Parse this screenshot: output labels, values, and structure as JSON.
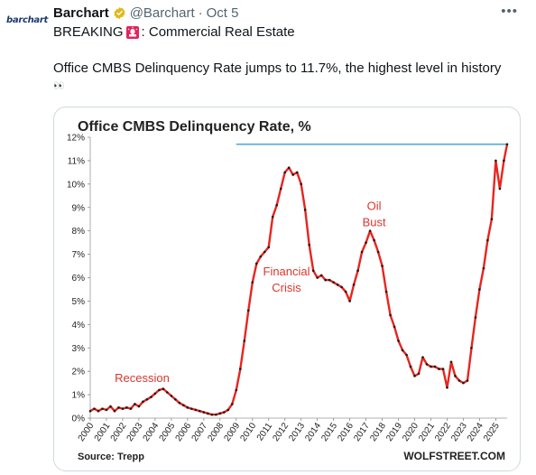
{
  "tweet": {
    "avatar_text": "barchart",
    "author_name": "Barchart",
    "handle": "@Barchart",
    "separator": "·",
    "timestamp": "Oct 5",
    "more_label": "•••",
    "line1_prefix": "BREAKING",
    "line1_suffix": ": Commercial Real Estate",
    "line2": "Office CMBS Delinquency Rate jumps to 11.7%, the highest level in history",
    "eyes": "👀"
  },
  "chart_data": {
    "type": "line",
    "title": "Office CMBS Delinquency Rate, %",
    "source": "Source: Trepp",
    "watermark": "WOLFSTREET.COM",
    "ylim": [
      0,
      12
    ],
    "yticks": [
      "0%",
      "1%",
      "2%",
      "3%",
      "4%",
      "5%",
      "6%",
      "7%",
      "8%",
      "9%",
      "10%",
      "11%",
      "12%"
    ],
    "xlim": [
      2000,
      2025.7
    ],
    "xticks": [
      "2000",
      "2001",
      "2002",
      "2003",
      "2004",
      "2005",
      "2006",
      "2007",
      "2008",
      "2009",
      "2010",
      "2011",
      "2012",
      "2013",
      "2014",
      "2015",
      "2016",
      "2017",
      "2018",
      "2019",
      "2020",
      "2021",
      "2022",
      "2023",
      "2024",
      "2025"
    ],
    "line_color": "#e8251e",
    "marker_color": "#1a1a1a",
    "reference_line": {
      "value": 11.7,
      "start_x": 2009.0,
      "color": "#5ab0d9"
    },
    "annotations": [
      {
        "text": "Recession",
        "x": 2003.2,
        "y": 1.55,
        "color": "#d9372e"
      },
      {
        "text": "Financial",
        "x": 2012.1,
        "y": 6.1,
        "color": "#d9372e"
      },
      {
        "text": "Crisis",
        "x": 2012.1,
        "y": 5.4,
        "color": "#d9372e"
      },
      {
        "text": "Oil",
        "x": 2017.5,
        "y": 8.9,
        "color": "#d9372e"
      },
      {
        "text": "Bust",
        "x": 2017.5,
        "y": 8.2,
        "color": "#d9372e"
      }
    ],
    "series": [
      {
        "x": [
          2000.0,
          2000.25,
          2000.5,
          2000.75,
          2001.0,
          2001.25,
          2001.5,
          2001.75,
          2002.0,
          2002.25,
          2002.5,
          2002.75,
          2003.0,
          2003.25,
          2003.5,
          2003.75,
          2004.0,
          2004.25,
          2004.5,
          2004.75,
          2005.0,
          2005.25,
          2005.5,
          2005.75,
          2006.0,
          2006.25,
          2006.5,
          2006.75,
          2007.0,
          2007.25,
          2007.5,
          2007.75,
          2008.0,
          2008.25,
          2008.5,
          2008.75,
          2009.0,
          2009.25,
          2009.5,
          2009.75,
          2010.0,
          2010.25,
          2010.5,
          2010.75,
          2011.0,
          2011.25,
          2011.5,
          2011.75,
          2012.0,
          2012.25,
          2012.5,
          2012.75,
          2013.0,
          2013.25,
          2013.5,
          2013.75,
          2014.0,
          2014.25,
          2014.5,
          2014.75,
          2015.0,
          2015.25,
          2015.5,
          2015.75,
          2016.0,
          2016.25,
          2016.5,
          2016.75,
          2017.0,
          2017.25,
          2017.5,
          2017.75,
          2018.0,
          2018.25,
          2018.5,
          2018.75,
          2019.0,
          2019.25,
          2019.5,
          2019.75,
          2020.0,
          2020.25,
          2020.5,
          2020.75,
          2021.0,
          2021.25,
          2021.5,
          2021.75,
          2022.0,
          2022.25,
          2022.5,
          2022.75,
          2023.0,
          2023.25,
          2023.5,
          2023.75,
          2024.0,
          2024.25,
          2024.5,
          2024.75,
          2025.0,
          2025.25,
          2025.5,
          2025.7
        ],
        "values": [
          0.3,
          0.4,
          0.3,
          0.4,
          0.35,
          0.5,
          0.3,
          0.45,
          0.4,
          0.45,
          0.4,
          0.6,
          0.5,
          0.7,
          0.8,
          0.9,
          1.05,
          1.2,
          1.25,
          1.1,
          0.95,
          0.8,
          0.65,
          0.55,
          0.45,
          0.4,
          0.35,
          0.3,
          0.25,
          0.2,
          0.15,
          0.15,
          0.2,
          0.25,
          0.35,
          0.6,
          1.2,
          2.1,
          3.3,
          4.6,
          5.8,
          6.6,
          6.9,
          7.1,
          7.3,
          8.6,
          9.1,
          9.8,
          10.5,
          10.7,
          10.4,
          10.5,
          10.0,
          8.9,
          7.4,
          6.3,
          6.0,
          6.1,
          5.9,
          5.9,
          5.8,
          5.7,
          5.6,
          5.4,
          5.0,
          5.7,
          6.3,
          7.1,
          7.5,
          8.0,
          7.6,
          7.1,
          6.5,
          5.4,
          4.4,
          3.9,
          3.3,
          2.9,
          2.7,
          2.2,
          1.8,
          1.9,
          2.6,
          2.3,
          2.2,
          2.2,
          2.1,
          2.1,
          1.3,
          2.4,
          1.8,
          1.6,
          1.5,
          1.6,
          3.0,
          4.3,
          5.5,
          6.4,
          7.6,
          8.5,
          11.0,
          9.8,
          11.0,
          11.7
        ]
      }
    ]
  }
}
